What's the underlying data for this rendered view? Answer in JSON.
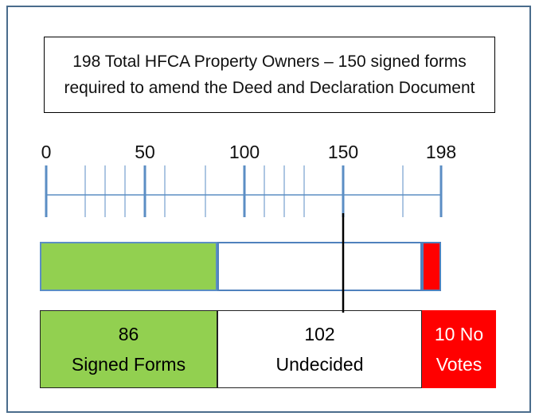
{
  "title": {
    "line1": "198 Total HFCA Property Owners – 150 signed forms",
    "line2": "required to amend the Deed and Declaration Document"
  },
  "scale": {
    "total": 198,
    "threshold": 150,
    "labels": [
      "0",
      "50",
      "100",
      "150",
      "198"
    ],
    "label_values": [
      0,
      50,
      100,
      150,
      198
    ]
  },
  "chart_data": {
    "type": "bar",
    "categories": [
      "Signed Forms",
      "Undecided",
      "No Votes"
    ],
    "values": [
      86,
      102,
      10
    ],
    "total": 198,
    "threshold": 150
  },
  "segments": [
    {
      "count": "86",
      "label": "Signed Forms",
      "color": "#92d050"
    },
    {
      "count": "102",
      "label": "Undecided",
      "color": "#ffffff"
    },
    {
      "count": "10 No",
      "label": "Votes",
      "color": "#ff0000"
    }
  ]
}
